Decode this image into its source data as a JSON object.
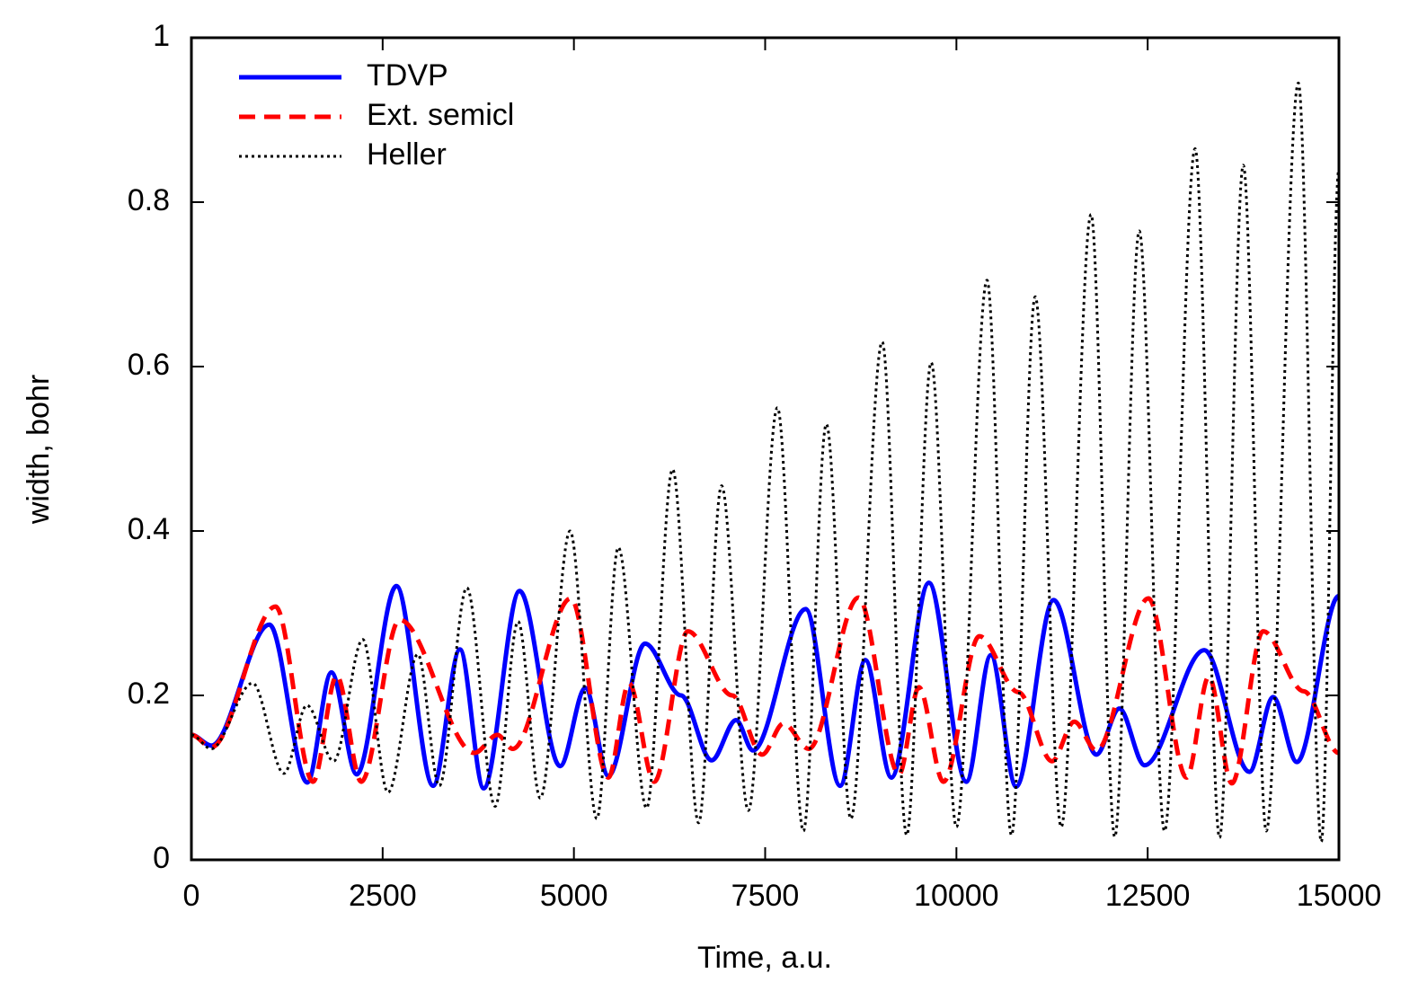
{
  "chart_data": {
    "type": "line",
    "xlabel": "Time, a.u.",
    "ylabel": "width, bohr",
    "xlim": [
      0,
      15000
    ],
    "xticks": [
      0,
      2500,
      5000,
      7500,
      10000,
      12500,
      15000
    ],
    "ylim": [
      0,
      1
    ],
    "yticks": [
      0,
      0.2,
      0.4,
      0.6,
      0.8,
      1
    ],
    "legend": "top-left",
    "series": [
      {
        "name": "TDVP",
        "color": "#0000ff",
        "dash": "solid",
        "x": [
          0,
          260,
          1020,
          1515,
          1830,
          2160,
          2680,
          3160,
          3510,
          3820,
          4290,
          4820,
          5150,
          5450,
          5930,
          6400,
          6800,
          7120,
          7340,
          8030,
          8480,
          8810,
          9150,
          9640,
          10130,
          10450,
          10780,
          11270,
          11830,
          12130,
          12460,
          13240,
          13830,
          14140,
          14450,
          15000
        ],
        "values": [
          0.152,
          0.139,
          0.286,
          0.094,
          0.228,
          0.104,
          0.333,
          0.09,
          0.256,
          0.087,
          0.327,
          0.114,
          0.209,
          0.102,
          0.263,
          0.2,
          0.121,
          0.17,
          0.133,
          0.305,
          0.09,
          0.243,
          0.1,
          0.337,
          0.095,
          0.249,
          0.089,
          0.316,
          0.128,
          0.184,
          0.115,
          0.255,
          0.107,
          0.198,
          0.119,
          0.321
        ]
      },
      {
        "name": "Ext. semicl",
        "color": "#ff0000",
        "dash": "dashed",
        "x": [
          0,
          260,
          1100,
          1590,
          1900,
          2220,
          2720,
          3700,
          4000,
          4200,
          4960,
          5450,
          5720,
          6050,
          6490,
          7070,
          7460,
          7740,
          8070,
          8720,
          9250,
          9510,
          9830,
          10300,
          10810,
          11250,
          11540,
          11830,
          12510,
          13010,
          13300,
          13600,
          14010,
          14540,
          15000
        ],
        "values": [
          0.152,
          0.137,
          0.308,
          0.095,
          0.224,
          0.095,
          0.292,
          0.13,
          0.152,
          0.135,
          0.318,
          0.1,
          0.215,
          0.095,
          0.278,
          0.2,
          0.128,
          0.166,
          0.135,
          0.319,
          0.104,
          0.21,
          0.095,
          0.272,
          0.204,
          0.12,
          0.168,
          0.133,
          0.318,
          0.1,
          0.223,
          0.093,
          0.278,
          0.205,
          0.13
        ]
      },
      {
        "name": "Heller",
        "color": "#000000",
        "dash": "dotted",
        "x": [
          0,
          260,
          800,
          1210,
          1510,
          1860,
          2240,
          2570,
          2960,
          3240,
          3600,
          3970,
          4270,
          4560,
          4950,
          5300,
          5580,
          5950,
          6290,
          6630,
          6930,
          7280,
          7660,
          8000,
          8300,
          8620,
          9030,
          9350,
          9670,
          10000,
          10400,
          10720,
          11030,
          11370,
          11760,
          12070,
          12390,
          12720,
          13120,
          13440,
          13750,
          14050,
          14470,
          14770,
          15000
        ],
        "values": [
          0.152,
          0.135,
          0.215,
          0.105,
          0.188,
          0.12,
          0.268,
          0.082,
          0.25,
          0.09,
          0.331,
          0.065,
          0.29,
          0.075,
          0.4,
          0.05,
          0.38,
          0.063,
          0.475,
          0.045,
          0.455,
          0.06,
          0.55,
          0.035,
          0.53,
          0.05,
          0.63,
          0.03,
          0.605,
          0.04,
          0.705,
          0.03,
          0.685,
          0.04,
          0.785,
          0.028,
          0.765,
          0.035,
          0.865,
          0.027,
          0.845,
          0.035,
          0.945,
          0.022,
          0.84
        ]
      }
    ]
  }
}
